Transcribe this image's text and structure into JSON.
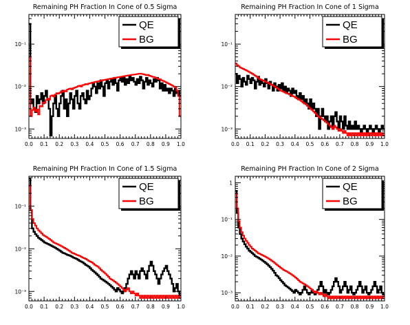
{
  "chart_data": [
    {
      "type": "line",
      "title": "Remaining PH Fraction In Cone of 0.5 Sigma",
      "xlabel": "",
      "ylabel": "",
      "xlim": [
        0.0,
        1.0
      ],
      "ylim": [
        0.0006,
        0.5
      ],
      "yscale": "log",
      "xticks": [
        "0.0",
        "0.1",
        "0.2",
        "0.3",
        "0.4",
        "0.5",
        "0.6",
        "0.7",
        "0.8",
        "0.9",
        "1.0"
      ],
      "yticks": [
        {
          "value": 0.001,
          "label": "10⁻³"
        },
        {
          "value": 0.01,
          "label": "10⁻²"
        },
        {
          "value": 0.1,
          "label": "10⁻¹"
        }
      ],
      "legend_position": "top-right",
      "series": [
        {
          "name": "QE",
          "color": "#000000",
          "values": [
            0.3,
            0.004,
            0.005,
            0.003,
            0.0025,
            0.006,
            0.004,
            0.005,
            0.007,
            0.004,
            0.006,
            0.008,
            0.005,
            0.003,
            0.0007,
            0.002,
            0.004,
            0.006,
            0.003,
            0.002,
            0.004,
            0.006,
            0.008,
            0.003,
            0.005,
            0.002,
            0.004,
            0.007,
            0.005,
            0.003,
            0.006,
            0.008,
            0.004,
            0.003,
            0.006,
            0.007,
            0.005,
            0.004,
            0.008,
            0.005,
            0.006,
            0.009,
            0.012,
            0.01,
            0.007,
            0.012,
            0.009,
            0.014,
            0.01,
            0.006,
            0.012,
            0.014,
            0.009,
            0.013,
            0.015,
            0.011,
            0.016,
            0.012,
            0.008,
            0.014,
            0.016,
            0.013,
            0.017,
            0.011,
            0.015,
            0.012,
            0.018,
            0.014,
            0.016,
            0.013,
            0.011,
            0.015,
            0.012,
            0.017,
            0.014,
            0.009,
            0.013,
            0.016,
            0.011,
            0.014,
            0.012,
            0.01,
            0.015,
            0.013,
            0.016,
            0.014,
            0.009,
            0.012,
            0.008,
            0.011,
            0.008,
            0.009,
            0.007,
            0.009,
            0.008,
            0.006,
            0.009,
            0.007,
            0.008,
            0.006
          ]
        },
        {
          "name": "BG",
          "color": "#ff0000",
          "values": [
            0.05,
            0.002,
            0.0028,
            0.0032,
            0.0026,
            0.0029,
            0.0022,
            0.0035,
            0.0034,
            0.0042,
            0.0041,
            0.0048,
            0.0052,
            0.0049,
            0.006,
            0.0062,
            0.0058,
            0.0065,
            0.007,
            0.0068,
            0.0072,
            0.0078,
            0.0075,
            0.008,
            0.0077,
            0.0085,
            0.0088,
            0.009,
            0.0086,
            0.0092,
            0.0095,
            0.0098,
            0.0102,
            0.0105,
            0.01,
            0.0108,
            0.011,
            0.0115,
            0.0112,
            0.0118,
            0.012,
            0.0123,
            0.0125,
            0.0128,
            0.013,
            0.0133,
            0.0135,
            0.0138,
            0.014,
            0.0143,
            0.0145,
            0.0148,
            0.015,
            0.0153,
            0.0155,
            0.0158,
            0.016,
            0.0162,
            0.0165,
            0.0167,
            0.017,
            0.0172,
            0.0175,
            0.0178,
            0.018,
            0.0183,
            0.0185,
            0.0188,
            0.019,
            0.0192,
            0.0195,
            0.0197,
            0.02,
            0.0202,
            0.0198,
            0.0195,
            0.019,
            0.0185,
            0.0188,
            0.018,
            0.0175,
            0.017,
            0.0168,
            0.016,
            0.0155,
            0.015,
            0.0148,
            0.014,
            0.0135,
            0.013,
            0.0125,
            0.012,
            0.0115,
            0.011,
            0.0105,
            0.01,
            0.0095,
            0.008,
            0.006,
            0.002
          ]
        }
      ]
    },
    {
      "type": "line",
      "title": "Remaining PH Fraction In Cone of 1 Sigma",
      "xlabel": "",
      "ylabel": "",
      "xlim": [
        0.0,
        1.0
      ],
      "ylim": [
        0.0006,
        0.5
      ],
      "yscale": "log",
      "xticks": [
        "0.0",
        "0.1",
        "0.2",
        "0.3",
        "0.4",
        "0.5",
        "0.6",
        "0.7",
        "0.8",
        "0.9",
        "1.0"
      ],
      "yticks": [
        {
          "value": 0.001,
          "label": "10⁻³"
        },
        {
          "value": 0.01,
          "label": "10⁻²"
        },
        {
          "value": 0.1,
          "label": "10⁻¹"
        }
      ],
      "legend_position": "top-right",
      "series": [
        {
          "name": "QE",
          "color": "#000000",
          "values": [
            0.02,
            0.012,
            0.018,
            0.015,
            0.01,
            0.016,
            0.013,
            0.011,
            0.018,
            0.015,
            0.012,
            0.016,
            0.014,
            0.009,
            0.013,
            0.017,
            0.011,
            0.014,
            0.012,
            0.01,
            0.015,
            0.012,
            0.009,
            0.013,
            0.011,
            0.008,
            0.012,
            0.01,
            0.008,
            0.011,
            0.009,
            0.012,
            0.008,
            0.01,
            0.007,
            0.009,
            0.008,
            0.006,
            0.009,
            0.007,
            0.008,
            0.006,
            0.005,
            0.007,
            0.005,
            0.006,
            0.004,
            0.005,
            0.004,
            0.003,
            0.005,
            0.003,
            0.004,
            0.003,
            0.002,
            0.003,
            0.001,
            0.002,
            0.003,
            0.002,
            0.0015,
            0.002,
            0.001,
            0.0015,
            0.002,
            0.001,
            0.002,
            0.0025,
            0.0015,
            0.001,
            0.002,
            0.0015,
            0.001,
            0.002,
            0.0012,
            0.001,
            0.0015,
            0.001,
            0.0012,
            0.001,
            0.0015,
            0.001,
            0.0012,
            0.001,
            0.0008,
            0.001,
            0.0012,
            0.001,
            0.0008,
            0.001,
            0.0012,
            0.001,
            0.0008,
            0.001,
            0.0012,
            0.001,
            0.0008,
            0.001,
            0.0012,
            0.001
          ]
        },
        {
          "name": "BG",
          "color": "#ff0000",
          "values": [
            0.035,
            0.032,
            0.03,
            0.028,
            0.027,
            0.026,
            0.025,
            0.024,
            0.023,
            0.022,
            0.021,
            0.02,
            0.019,
            0.018,
            0.017,
            0.016,
            0.015,
            0.0145,
            0.014,
            0.0135,
            0.013,
            0.0125,
            0.012,
            0.0115,
            0.011,
            0.0105,
            0.01,
            0.0095,
            0.009,
            0.0085,
            0.008,
            0.0078,
            0.0075,
            0.0072,
            0.007,
            0.0068,
            0.0065,
            0.0062,
            0.006,
            0.0058,
            0.0055,
            0.0052,
            0.005,
            0.0048,
            0.0045,
            0.0042,
            0.004,
            0.0038,
            0.0035,
            0.0032,
            0.003,
            0.0028,
            0.0026,
            0.0024,
            0.0022,
            0.002,
            0.0019,
            0.0018,
            0.0017,
            0.0016,
            0.0015,
            0.0014,
            0.0013,
            0.0012,
            0.0011,
            0.001,
            0.0012,
            0.0011,
            0.001,
            0.0009,
            0.001,
            0.0009,
            0.0008,
            0.0009,
            0.0008,
            0.0007,
            0.0008,
            0.0007,
            0.0008,
            0.0007,
            0.0008,
            0.0007,
            0.0008,
            0.0007,
            0.0008,
            0.0007,
            0.0008,
            0.0007,
            0.0008,
            0.0007,
            0.0008,
            0.0007,
            0.0008,
            0.0007,
            0.0008,
            0.0007,
            0.0008,
            0.0007,
            0.0008,
            0.0007
          ]
        }
      ]
    },
    {
      "type": "line",
      "title": "Remaining PH Fraction In Cone of 1.5 Sigma",
      "xlabel": "",
      "ylabel": "",
      "xlim": [
        0.0,
        1.0
      ],
      "ylim": [
        0.0006,
        0.5
      ],
      "yscale": "log",
      "xticks": [
        "0.0",
        "0.1",
        "0.2",
        "0.3",
        "0.4",
        "0.5",
        "0.6",
        "0.7",
        "0.8",
        "0.9",
        "1.0"
      ],
      "yticks": [
        {
          "value": 0.001,
          "label": "10⁻³"
        },
        {
          "value": 0.01,
          "label": "10⁻²"
        },
        {
          "value": 0.1,
          "label": "10⁻¹"
        }
      ],
      "legend_position": "top-right",
      "series": [
        {
          "name": "QE",
          "color": "#000000",
          "values": [
            0.45,
            0.08,
            0.03,
            0.025,
            0.022,
            0.02,
            0.018,
            0.017,
            0.016,
            0.015,
            0.014,
            0.0135,
            0.013,
            0.0125,
            0.012,
            0.0115,
            0.011,
            0.0105,
            0.01,
            0.0095,
            0.009,
            0.0085,
            0.008,
            0.0078,
            0.0075,
            0.0072,
            0.007,
            0.0068,
            0.0065,
            0.0062,
            0.006,
            0.0058,
            0.0055,
            0.0052,
            0.005,
            0.0048,
            0.0045,
            0.0042,
            0.004,
            0.0038,
            0.0035,
            0.0032,
            0.003,
            0.0028,
            0.0026,
            0.0024,
            0.0022,
            0.002,
            0.0019,
            0.0018,
            0.0017,
            0.0016,
            0.0015,
            0.0014,
            0.0013,
            0.0012,
            0.0011,
            0.001,
            0.0012,
            0.0011,
            0.001,
            0.0009,
            0.001,
            0.0012,
            0.0015,
            0.002,
            0.0025,
            0.003,
            0.0025,
            0.002,
            0.003,
            0.0025,
            0.002,
            0.003,
            0.0035,
            0.003,
            0.0025,
            0.002,
            0.003,
            0.004,
            0.005,
            0.004,
            0.003,
            0.0025,
            0.002,
            0.0015,
            0.002,
            0.0025,
            0.003,
            0.0035,
            0.004,
            0.003,
            0.0025,
            0.002,
            0.0015,
            0.001,
            0.0012,
            0.0015,
            0.001,
            0.0008
          ]
        },
        {
          "name": "BG",
          "color": "#ff0000",
          "values": [
            0.3,
            0.08,
            0.05,
            0.04,
            0.035,
            0.03,
            0.027,
            0.025,
            0.023,
            0.021,
            0.02,
            0.019,
            0.018,
            0.017,
            0.016,
            0.015,
            0.014,
            0.0135,
            0.013,
            0.0125,
            0.012,
            0.0115,
            0.011,
            0.0105,
            0.01,
            0.0095,
            0.009,
            0.0085,
            0.008,
            0.0078,
            0.0075,
            0.0072,
            0.007,
            0.0068,
            0.0065,
            0.0062,
            0.006,
            0.0058,
            0.0055,
            0.0052,
            0.005,
            0.0048,
            0.0045,
            0.0042,
            0.004,
            0.0038,
            0.0035,
            0.0032,
            0.003,
            0.0028,
            0.0026,
            0.0024,
            0.0022,
            0.002,
            0.0019,
            0.0018,
            0.0017,
            0.0016,
            0.0015,
            0.0014,
            0.0013,
            0.0012,
            0.0011,
            0.001,
            0.0011,
            0.0012,
            0.001,
            0.0009,
            0.001,
            0.0009,
            0.0008,
            0.0009,
            0.0008,
            0.0007,
            0.0008,
            0.0007,
            0.0008,
            0.0007,
            0.0008,
            0.0007,
            0.0008,
            0.0007,
            0.0008,
            0.0007,
            0.0008,
            0.0007,
            0.0008,
            0.0007,
            0.0008,
            0.0007,
            0.0008,
            0.0007,
            0.0008,
            0.0007,
            0.0008,
            0.0007,
            0.0008,
            0.0007,
            0.0008,
            0.0007
          ]
        }
      ]
    },
    {
      "type": "line",
      "title": "Remaining PH Fraction In Cone of 2 Sigma",
      "xlabel": "",
      "ylabel": "",
      "xlim": [
        0.0,
        1.0
      ],
      "ylim": [
        0.0006,
        1.5
      ],
      "yscale": "log",
      "xticks": [
        "0.0",
        "0.1",
        "0.2",
        "0.3",
        "0.4",
        "0.5",
        "0.6",
        "0.7",
        "0.8",
        "0.9",
        "1.0"
      ],
      "yticks": [
        {
          "value": 0.001,
          "label": "10⁻³"
        },
        {
          "value": 0.01,
          "label": "10⁻²"
        },
        {
          "value": 0.1,
          "label": "10⁻¹"
        },
        {
          "value": 1,
          "label": "1"
        }
      ],
      "legend_position": "top-right",
      "series": [
        {
          "name": "QE",
          "color": "#000000",
          "values": [
            0.6,
            0.15,
            0.06,
            0.04,
            0.03,
            0.025,
            0.021,
            0.018,
            0.016,
            0.014,
            0.013,
            0.012,
            0.011,
            0.01,
            0.0095,
            0.009,
            0.0085,
            0.008,
            0.0075,
            0.007,
            0.0065,
            0.006,
            0.0055,
            0.005,
            0.0045,
            0.004,
            0.0035,
            0.003,
            0.0028,
            0.0025,
            0.0022,
            0.002,
            0.0018,
            0.0016,
            0.0015,
            0.0014,
            0.0013,
            0.0012,
            0.0011,
            0.001,
            0.0012,
            0.0011,
            0.001,
            0.0009,
            0.001,
            0.0012,
            0.0015,
            0.0012,
            0.001,
            0.0009,
            0.001,
            0.0012,
            0.001,
            0.0009,
            0.001,
            0.0012,
            0.0015,
            0.002,
            0.0015,
            0.001,
            0.0012,
            0.001,
            0.0009,
            0.001,
            0.0012,
            0.0015,
            0.002,
            0.0025,
            0.002,
            0.0015,
            0.001,
            0.0012,
            0.0015,
            0.002,
            0.0015,
            0.001,
            0.0012,
            0.0015,
            0.001,
            0.0009,
            0.001,
            0.0012,
            0.0015,
            0.002,
            0.0015,
            0.001,
            0.0012,
            0.0015,
            0.001,
            0.0009,
            0.001,
            0.0012,
            0.0015,
            0.002,
            0.0015,
            0.001,
            0.0012,
            0.0015,
            0.001,
            0.0009
          ]
        },
        {
          "name": "BG",
          "color": "#ff0000",
          "values": [
            0.5,
            0.2,
            0.09,
            0.06,
            0.045,
            0.036,
            0.03,
            0.026,
            0.023,
            0.02,
            0.018,
            0.016,
            0.015,
            0.014,
            0.013,
            0.012,
            0.0115,
            0.011,
            0.0105,
            0.01,
            0.0095,
            0.009,
            0.0085,
            0.008,
            0.0075,
            0.007,
            0.0065,
            0.006,
            0.0056,
            0.0052,
            0.0048,
            0.0045,
            0.0042,
            0.004,
            0.0038,
            0.0036,
            0.0034,
            0.0032,
            0.003,
            0.0028,
            0.0026,
            0.0024,
            0.0022,
            0.002,
            0.0019,
            0.0018,
            0.0017,
            0.0016,
            0.0015,
            0.0014,
            0.0013,
            0.0012,
            0.0011,
            0.001,
            0.0011,
            0.001,
            0.0009,
            0.001,
            0.0009,
            0.0008,
            0.0009,
            0.0008,
            0.0007,
            0.0008,
            0.0007,
            0.0008,
            0.0007,
            0.0008,
            0.0007,
            0.0008,
            0.0007,
            0.0008,
            0.0007,
            0.0008,
            0.0007,
            0.0008,
            0.0007,
            0.0008,
            0.0007,
            0.0008,
            0.0007,
            0.0008,
            0.0007,
            0.0008,
            0.0007,
            0.0008,
            0.0007,
            0.0008,
            0.0007,
            0.0008,
            0.0007,
            0.0008,
            0.0007,
            0.0008,
            0.0007,
            0.0008,
            0.0007,
            0.0008,
            0.0007,
            0.0008
          ]
        }
      ]
    }
  ]
}
